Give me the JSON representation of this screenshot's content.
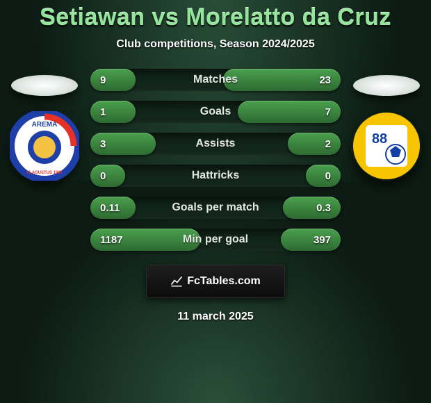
{
  "title": "Setiawan vs Morelatto da Cruz",
  "subtitle": "Club competitions, Season 2024/2025",
  "date": "11 march 2025",
  "brand": "FcTables.com",
  "colors": {
    "bg_dark": "#0c1b13",
    "radial_top": "#284d37",
    "radial_bottom": "#2a4f39",
    "title": "#93e59a",
    "subtitle": "#ffffff",
    "bar_bg": "#12261b",
    "fill_top": "#4aa04d",
    "fill_bottom": "#2e6a31",
    "label": "#dfe9e2",
    "value": "#ffffff"
  },
  "crests": {
    "left": {
      "ring_color": "#1f3fa8",
      "inner_color": "#ffffff",
      "accent_color": "#e53127",
      "name": "AREMA"
    },
    "right": {
      "ring_color": "#f6c400",
      "inner_color": "#ffffff",
      "accent_color": "#1340a5",
      "name": "88"
    }
  },
  "bars": [
    {
      "label": "Matches",
      "left_val": "9",
      "right_val": "23",
      "left_pct": 18,
      "right_pct": 47
    },
    {
      "label": "Goals",
      "left_val": "1",
      "right_val": "7",
      "left_pct": 18,
      "right_pct": 41
    },
    {
      "label": "Assists",
      "left_val": "3",
      "right_val": "2",
      "left_pct": 26,
      "right_pct": 21
    },
    {
      "label": "Hattricks",
      "left_val": "0",
      "right_val": "0",
      "left_pct": 14,
      "right_pct": 14
    },
    {
      "label": "Goals per match",
      "left_val": "0.11",
      "right_val": "0.3",
      "left_pct": 18,
      "right_pct": 23
    },
    {
      "label": "Min per goal",
      "left_val": "1187",
      "right_val": "397",
      "left_pct": 44,
      "right_pct": 24
    }
  ]
}
